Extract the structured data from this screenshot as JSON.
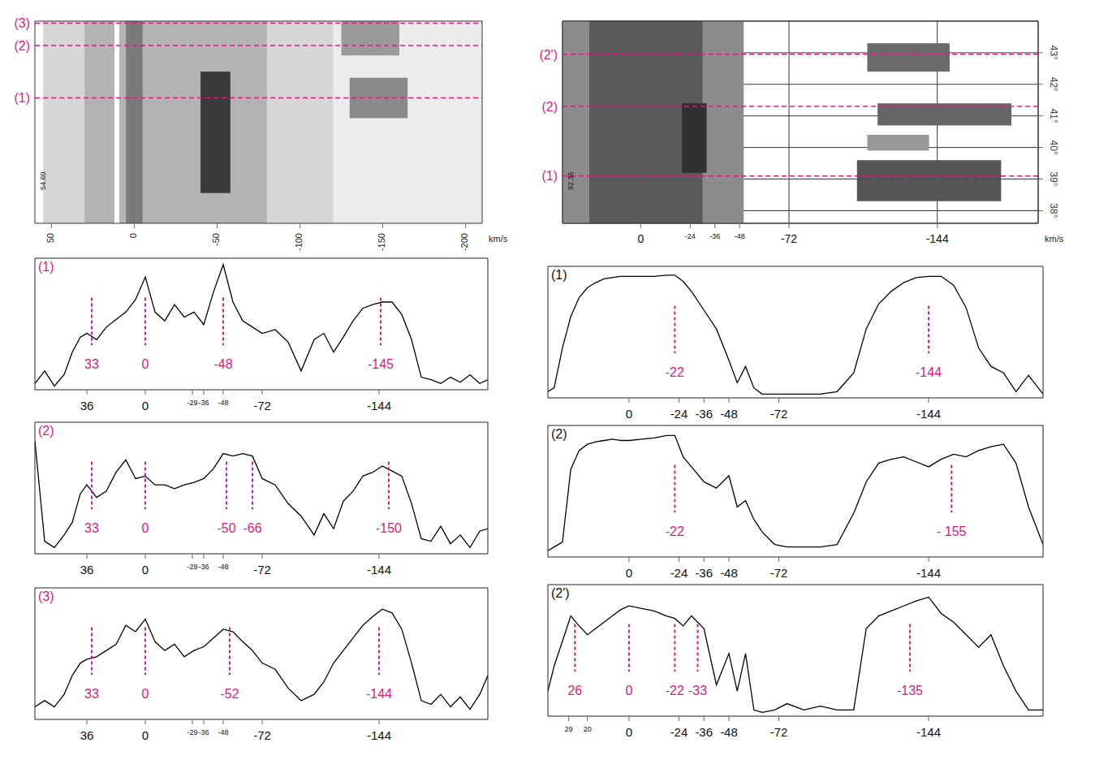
{
  "chart_data": [
    {
      "type": "image",
      "xlim": [
        60,
        -210
      ],
      "xticks": [
        50,
        0,
        -50,
        -100,
        -150,
        -200
      ],
      "x_label": "km/s",
      "ylim": [
        0,
        10
      ],
      "tick_labels": "x",
      "corner_label": "54.60",
      "cuts": [
        {
          "y": 6.2,
          "label": "(1)",
          "color": "#e8177d"
        },
        {
          "y": 8.8,
          "label": "(2)",
          "color": "#e8177d"
        },
        {
          "y": 9.9,
          "label": "(3)",
          "color": "#e8177d"
        }
      ],
      "regions": [
        {
          "x": [
            -100,
            -210
          ],
          "y": [
            0,
            10
          ],
          "color": "#ececec"
        },
        {
          "x": [
            55,
            -120
          ],
          "y": [
            0,
            10
          ],
          "color": "#d6d6d6"
        },
        {
          "x": [
            30,
            -80
          ],
          "y": [
            0,
            10
          ],
          "color": "#b3b3b3"
        },
        {
          "x": [
            5,
            -5
          ],
          "y": [
            0,
            10
          ],
          "color": "#7a7a7a"
        },
        {
          "x": [
            12,
            9
          ],
          "y": [
            0,
            10
          ],
          "color": "#ffffff"
        },
        {
          "x": [
            -40,
            -58
          ],
          "y": [
            1.5,
            7.5
          ],
          "color": "#3a3a3a"
        },
        {
          "x": [
            -130,
            -165
          ],
          "y": [
            5.2,
            7.2
          ],
          "color": "#8a8a8a"
        },
        {
          "x": [
            -125,
            -160
          ],
          "y": [
            8.3,
            10
          ],
          "color": "#9a9a9a"
        }
      ]
    },
    {
      "type": "image",
      "xlim": [
        38,
        -193
      ],
      "xticks": [
        0,
        -24,
        -36,
        -48,
        -72,
        -144
      ],
      "x_label": "km/s",
      "ylim": [
        37.6,
        44
      ],
      "yticks": [
        {
          "value": 38,
          "label": "38°"
        },
        {
          "value": 39,
          "label": "39°"
        },
        {
          "value": 40,
          "label": "40°"
        },
        {
          "value": 41,
          "label": "41°"
        },
        {
          "value": 42,
          "label": "42°"
        },
        {
          "value": 43,
          "label": "43°"
        }
      ],
      "grid": true,
      "corner_label": "92.35",
      "cuts": [
        {
          "y": 39.1,
          "label": "(1)",
          "color": "#e8177d"
        },
        {
          "y": 41.3,
          "label": "(2)",
          "color": "#e8177d"
        },
        {
          "y": 42.95,
          "label": "(2')",
          "color": "#e8177d"
        }
      ],
      "regions": [
        {
          "x": [
            38,
            -50
          ],
          "y": [
            37.6,
            44
          ],
          "color": "#8c8c8c"
        },
        {
          "x": [
            25,
            -30
          ],
          "y": [
            37.6,
            44
          ],
          "color": "#5a5a5a"
        },
        {
          "x": [
            -20,
            -32
          ],
          "y": [
            39.2,
            41.4
          ],
          "color": "#303030"
        },
        {
          "x": [
            -105,
            -175
          ],
          "y": [
            38.3,
            39.6
          ],
          "color": "#555555"
        },
        {
          "x": [
            -110,
            -140
          ],
          "y": [
            39.9,
            40.4
          ],
          "color": "#999999"
        },
        {
          "x": [
            -115,
            -180
          ],
          "y": [
            40.7,
            41.4
          ],
          "color": "#666666"
        },
        {
          "x": [
            -110,
            -150
          ],
          "y": [
            42.4,
            43.3
          ],
          "color": "#6a6a6a"
        }
      ]
    },
    {
      "type": "line",
      "title": "(1)",
      "color": "#000000",
      "xlim": [
        68,
        -211
      ],
      "xticks": [
        36,
        0,
        -29,
        -36,
        -48,
        -72,
        -144
      ],
      "ylim": [
        0,
        105
      ],
      "tick_labels": "x",
      "x": [
        68,
        62,
        56,
        50,
        45,
        40,
        36,
        30,
        24,
        18,
        12,
        6,
        0,
        -6,
        -12,
        -18,
        -24,
        -30,
        -36,
        -42,
        -48,
        -54,
        -60,
        -66,
        -72,
        -80,
        -88,
        -96,
        -104,
        -110,
        -116,
        -122,
        -128,
        -134,
        -140,
        -146,
        -152,
        -158,
        -164,
        -170,
        -176,
        -182,
        -188,
        -194,
        -200,
        -206,
        -211
      ],
      "values": [
        5,
        15,
        3,
        12,
        30,
        42,
        45,
        40,
        50,
        56,
        62,
        72,
        90,
        62,
        55,
        68,
        58,
        62,
        52,
        78,
        100,
        70,
        55,
        50,
        45,
        48,
        38,
        15,
        40,
        45,
        30,
        42,
        55,
        65,
        68,
        70,
        70,
        60,
        40,
        10,
        8,
        5,
        10,
        6,
        12,
        5,
        8
      ],
      "annotations": [
        {
          "x": 33,
          "label": "33"
        },
        {
          "x": 0,
          "label": "0"
        },
        {
          "x": -48,
          "label": "-48"
        },
        {
          "x": -145,
          "label": "-145"
        }
      ]
    },
    {
      "type": "line",
      "title": "(2)",
      "color": "#000000",
      "xlim": [
        68,
        -211
      ],
      "xticks": [
        36,
        0,
        -29,
        -36,
        -48,
        -72,
        -144
      ],
      "ylim": [
        0,
        105
      ],
      "tick_labels": "x",
      "x": [
        68,
        62,
        56,
        50,
        45,
        40,
        36,
        30,
        24,
        18,
        12,
        6,
        0,
        -6,
        -12,
        -18,
        -24,
        -30,
        -36,
        -42,
        -48,
        -54,
        -60,
        -66,
        -72,
        -80,
        -88,
        -96,
        -104,
        -110,
        -116,
        -122,
        -128,
        -134,
        -140,
        -146,
        -152,
        -158,
        -164,
        -170,
        -176,
        -182,
        -188,
        -194,
        -200,
        -206,
        -211
      ],
      "values": [
        90,
        10,
        5,
        15,
        25,
        48,
        55,
        45,
        50,
        65,
        75,
        60,
        62,
        55,
        55,
        52,
        55,
        57,
        60,
        68,
        80,
        78,
        80,
        78,
        60,
        55,
        40,
        30,
        15,
        32,
        20,
        42,
        50,
        62,
        65,
        70,
        66,
        62,
        40,
        12,
        10,
        22,
        8,
        15,
        5,
        18,
        20
      ],
      "annotations": [
        {
          "x": 33,
          "label": "33"
        },
        {
          "x": 0,
          "label": "0"
        },
        {
          "x": -50,
          "label": "-50"
        },
        {
          "x": -66,
          "label": "-66"
        },
        {
          "x": -150,
          "label": "-150"
        }
      ]
    },
    {
      "type": "line",
      "title": "(3)",
      "color": "#000000",
      "xlim": [
        68,
        -211
      ],
      "xticks": [
        36,
        0,
        -29,
        -36,
        -48,
        -72,
        -144
      ],
      "ylim": [
        0,
        105
      ],
      "tick_labels": "x",
      "x": [
        68,
        62,
        56,
        50,
        45,
        40,
        36,
        30,
        24,
        18,
        12,
        6,
        0,
        -6,
        -12,
        -18,
        -24,
        -30,
        -36,
        -42,
        -48,
        -54,
        -60,
        -66,
        -72,
        -80,
        -88,
        -96,
        -104,
        -110,
        -116,
        -122,
        -128,
        -134,
        -140,
        -146,
        -152,
        -158,
        -164,
        -170,
        -176,
        -182,
        -188,
        -194,
        -200,
        -206,
        -211
      ],
      "values": [
        10,
        15,
        10,
        20,
        35,
        45,
        48,
        50,
        55,
        60,
        75,
        70,
        80,
        62,
        55,
        60,
        50,
        55,
        58,
        65,
        72,
        70,
        62,
        55,
        45,
        40,
        25,
        15,
        20,
        30,
        45,
        55,
        65,
        75,
        82,
        88,
        85,
        72,
        45,
        15,
        12,
        20,
        10,
        18,
        8,
        20,
        35
      ],
      "annotations": [
        {
          "x": 33,
          "label": "33"
        },
        {
          "x": 0,
          "label": "0"
        },
        {
          "x": -52,
          "label": "-52"
        },
        {
          "x": -144,
          "label": "-144"
        }
      ]
    },
    {
      "type": "line",
      "title": "(1)",
      "color": "#000000",
      "xlim": [
        39,
        -199
      ],
      "xticks": [
        0,
        -24,
        -36,
        -48,
        -72,
        -144
      ],
      "ylim": [
        0,
        105
      ],
      "tick_labels": "x",
      "x": [
        39,
        36,
        32,
        28,
        24,
        20,
        16,
        12,
        8,
        4,
        0,
        -6,
        -12,
        -18,
        -22,
        -26,
        -30,
        -36,
        -42,
        -48,
        -52,
        -56,
        -60,
        -64,
        -70,
        -76,
        -84,
        -92,
        -100,
        -108,
        -114,
        -120,
        -126,
        -132,
        -138,
        -144,
        -150,
        -156,
        -162,
        -168,
        -174,
        -180,
        -186,
        -192,
        -199
      ],
      "values": [
        5,
        8,
        40,
        65,
        80,
        88,
        92,
        95,
        96,
        97,
        97,
        97,
        97,
        98,
        98,
        93,
        85,
        70,
        55,
        30,
        12,
        25,
        8,
        3,
        3,
        3,
        3,
        3,
        5,
        20,
        55,
        75,
        85,
        92,
        96,
        97,
        97,
        90,
        72,
        40,
        25,
        20,
        5,
        18,
        3
      ],
      "annotations": [
        {
          "x": -22,
          "label": "-22"
        },
        {
          "x": -144,
          "label": "-144"
        }
      ]
    },
    {
      "type": "line",
      "title": "(2)",
      "color": "#000000",
      "xlim": [
        39,
        -199
      ],
      "xticks": [
        0,
        -24,
        -36,
        -48,
        -72,
        -144
      ],
      "ylim": [
        0,
        105
      ],
      "tick_labels": "x",
      "x": [
        39,
        36,
        32,
        28,
        24,
        20,
        16,
        12,
        8,
        4,
        0,
        -6,
        -12,
        -18,
        -22,
        -26,
        -30,
        -36,
        -42,
        -48,
        -52,
        -56,
        -60,
        -64,
        -70,
        -76,
        -84,
        -92,
        -100,
        -108,
        -114,
        -120,
        -126,
        -132,
        -138,
        -144,
        -150,
        -156,
        -162,
        -168,
        -174,
        -180,
        -186,
        -192,
        -199
      ],
      "values": [
        5,
        8,
        12,
        70,
        85,
        90,
        92,
        93,
        94,
        93,
        93,
        94,
        95,
        97,
        97,
        80,
        72,
        60,
        55,
        65,
        40,
        45,
        30,
        20,
        10,
        8,
        8,
        8,
        10,
        35,
        60,
        75,
        78,
        80,
        76,
        72,
        78,
        82,
        80,
        85,
        88,
        90,
        75,
        40,
        10
      ],
      "annotations": [
        {
          "x": -22,
          "label": "-22"
        },
        {
          "x": -155,
          "label": "- 155"
        }
      ]
    },
    {
      "type": "line",
      "title": "(2')",
      "color": "#000000",
      "xlim": [
        39,
        -199
      ],
      "xticks": [
        29,
        20,
        0,
        -24,
        -36,
        -48,
        -72,
        -144
      ],
      "ylim": [
        0,
        105
      ],
      "tick_labels": "x",
      "x": [
        39,
        36,
        32,
        28,
        24,
        20,
        16,
        12,
        8,
        4,
        0,
        -6,
        -12,
        -18,
        -22,
        -26,
        -30,
        -36,
        -42,
        -48,
        -52,
        -56,
        -60,
        -64,
        -70,
        -76,
        -84,
        -92,
        -100,
        -108,
        -114,
        -120,
        -126,
        -132,
        -138,
        -144,
        -150,
        -156,
        -162,
        -168,
        -174,
        -180,
        -186,
        -192,
        -199
      ],
      "values": [
        20,
        40,
        60,
        80,
        72,
        65,
        70,
        75,
        80,
        85,
        88,
        86,
        84,
        80,
        78,
        72,
        80,
        70,
        25,
        50,
        20,
        50,
        5,
        3,
        5,
        10,
        5,
        8,
        5,
        5,
        70,
        80,
        84,
        88,
        92,
        95,
        82,
        75,
        65,
        55,
        65,
        40,
        20,
        5,
        5
      ],
      "annotations": [
        {
          "x": 26,
          "label": "26"
        },
        {
          "x": 0,
          "label": "0"
        },
        {
          "x": -22,
          "label": "-22"
        },
        {
          "x": -33,
          "label": "-33"
        },
        {
          "x": -135,
          "label": "-135"
        }
      ]
    }
  ]
}
